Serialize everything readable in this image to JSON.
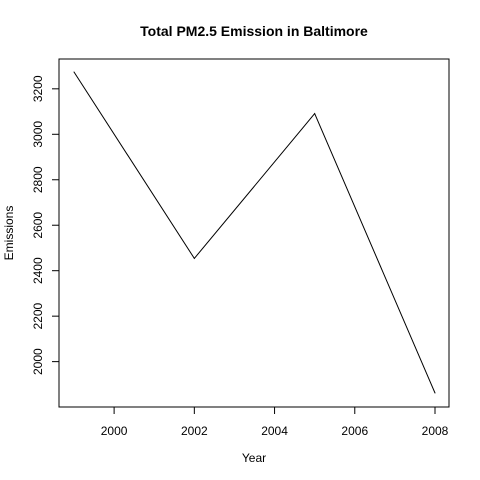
{
  "chart_data": {
    "type": "line",
    "title": "Total PM2.5 Emission in Baltimore",
    "xlabel": "Year",
    "ylabel": "Emissions",
    "x": [
      1999,
      2002,
      2005,
      2008
    ],
    "series": [
      {
        "values": [
          3274,
          2454,
          3091,
          1862
        ]
      }
    ],
    "xlim": [
      1999,
      2008
    ],
    "ylim": [
      1862,
      3274
    ],
    "xticks": [
      "2000",
      "2002",
      "2004",
      "2006",
      "2008"
    ],
    "yticks": [
      "2000",
      "2200",
      "2400",
      "2600",
      "2800",
      "3000",
      "3200"
    ],
    "grid": false,
    "line_color": "#000000"
  }
}
